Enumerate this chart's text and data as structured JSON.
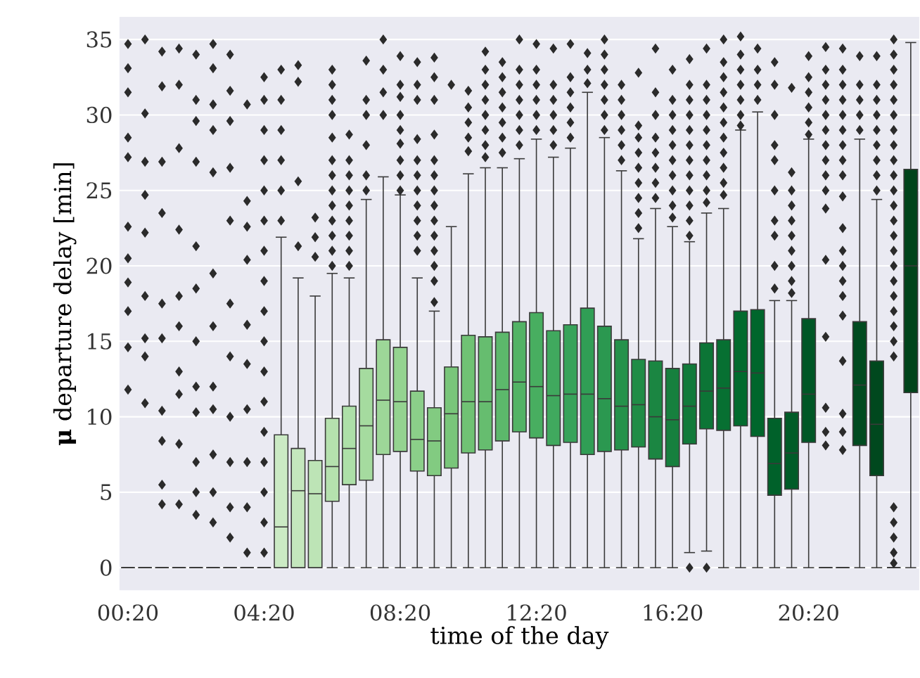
{
  "chart_data": {
    "type": "box",
    "xlabel": "time of the day",
    "ylabel": "**μ** departure delay [min]",
    "categories": [
      "00:20",
      null,
      null,
      null,
      null,
      null,
      null,
      null,
      "04:20",
      null,
      null,
      null,
      null,
      null,
      null,
      null,
      "08:20",
      null,
      null,
      null,
      null,
      null,
      null,
      null,
      "12:20",
      null,
      null,
      null,
      null,
      null,
      null,
      null,
      "16:20",
      null,
      null,
      null,
      null,
      null,
      null,
      null,
      "20:20",
      null,
      null,
      null,
      null,
      null,
      null
    ],
    "ylim": [
      -1.5,
      36.5
    ],
    "yticks": [
      0,
      5,
      10,
      15,
      20,
      25,
      30,
      35
    ],
    "grid": "y",
    "marker": "diamond",
    "colors": [
      "#3a3a3a",
      "#3a3a3a",
      "#3a3a3a",
      "#3a3a3a",
      "#3a3a3a",
      "#3a3a3a",
      "#3a3a3a",
      "#3a3a3a",
      "#3a3a3a",
      "#cbeac4",
      "#c4e7bd",
      "#bde4b6",
      "#b5e1ae",
      "#ade0a8",
      "#a5db9f",
      "#9dd798",
      "#94d390",
      "#8bcf89",
      "#82cb81",
      "#79c67a",
      "#70c274",
      "#66bd6f",
      "#5cb86b",
      "#52b365",
      "#48ae60",
      "#40a95e",
      "#38a35a",
      "#309e55",
      "#2b9850",
      "#25924b",
      "#208c46",
      "#1b8642",
      "#16803e",
      "#117a3a",
      "#0c7536",
      "#077032",
      "#026b2e",
      "#00662c",
      "#00612a",
      "#005c28",
      "#005726",
      "#3a3a3a",
      "#3a3a3a",
      "#004b20",
      "#00481e",
      "#3a3a3a",
      "#00441b"
    ],
    "boxes": [
      {
        "low": 0,
        "q1": 0,
        "median": 0,
        "q3": 0,
        "high": 0,
        "outliers": [
          11.8,
          14.6,
          17,
          18.9,
          20.5,
          22.6,
          27.2,
          28.5,
          31.5,
          33.1,
          34.7
        ]
      },
      {
        "low": 0,
        "q1": 0,
        "median": 0,
        "q3": 0,
        "high": 0,
        "outliers": [
          10.9,
          14,
          15.2,
          18,
          22.2,
          24.7,
          26.9,
          30.1,
          35
        ]
      },
      {
        "low": 0,
        "q1": 0,
        "median": 0,
        "q3": 0,
        "high": 0,
        "outliers": [
          4.2,
          5.5,
          8.4,
          10.4,
          15.2,
          17.5,
          23.5,
          26.9,
          31.9,
          34.2
        ]
      },
      {
        "low": 0,
        "q1": 0,
        "median": 0,
        "q3": 0,
        "high": 0,
        "outliers": [
          4.2,
          8.2,
          11.5,
          13,
          16,
          18,
          22.4,
          27.8,
          32,
          34.4
        ]
      },
      {
        "low": 0,
        "q1": 0,
        "median": 0,
        "q3": 0,
        "high": 0,
        "outliers": [
          3.5,
          5,
          7,
          10.3,
          12,
          15,
          18.5,
          21.3,
          26.9,
          29.6,
          31,
          34
        ]
      },
      {
        "low": 0,
        "q1": 0,
        "median": 0,
        "q3": 0,
        "high": 0,
        "outliers": [
          3,
          5,
          7.5,
          10.5,
          12,
          16,
          19.5,
          26.2,
          29,
          30.7,
          33.1,
          34.7
        ]
      },
      {
        "low": 0,
        "q1": 0,
        "median": 0,
        "q3": 0,
        "high": 0,
        "outliers": [
          2,
          4,
          7,
          10,
          14,
          17.5,
          23,
          26.5,
          29.6,
          31.6,
          34
        ]
      },
      {
        "low": 0,
        "q1": 0,
        "median": 0,
        "q3": 0,
        "high": 0,
        "outliers": [
          1,
          4,
          7,
          10.5,
          13.5,
          16.1,
          20.4,
          22.6,
          24.3,
          30.7
        ]
      },
      {
        "low": 0,
        "q1": 0,
        "median": 0,
        "q3": 0,
        "high": 0,
        "outliers": [
          1,
          3,
          5,
          7,
          9,
          11,
          13,
          15,
          17,
          19,
          21,
          23,
          25,
          27,
          29,
          31,
          32.5
        ]
      },
      {
        "low": 0,
        "q1": 0,
        "median": 2.7,
        "q3": 8.8,
        "high": 21.9,
        "outliers": [
          23,
          25,
          27,
          29,
          31,
          33
        ]
      },
      {
        "low": 0,
        "q1": 0,
        "median": 5.1,
        "q3": 7.9,
        "high": 19.2,
        "outliers": [
          21.3,
          25.6,
          32.2,
          33.3
        ]
      },
      {
        "low": 0,
        "q1": 0,
        "median": 4.9,
        "q3": 7.1,
        "high": 18,
        "outliers": [
          20.6,
          21.9,
          23.2
        ]
      },
      {
        "low": 0,
        "q1": 4.4,
        "median": 6.7,
        "q3": 9.9,
        "high": 19.5,
        "outliers": [
          20,
          21,
          22,
          23,
          24,
          25,
          26,
          27,
          28.5,
          30,
          31,
          32,
          33
        ]
      },
      {
        "low": 0,
        "q1": 5.5,
        "median": 7.9,
        "q3": 10.7,
        "high": 19.2,
        "outliers": [
          20,
          21,
          22,
          23,
          24,
          25,
          26,
          27,
          28.7
        ]
      },
      {
        "low": 0,
        "q1": 5.8,
        "median": 9.4,
        "q3": 13.2,
        "high": 24.4,
        "outliers": [
          25,
          26,
          28,
          30,
          31,
          33.6
        ]
      },
      {
        "low": 0,
        "q1": 7.5,
        "median": 11.1,
        "q3": 15.1,
        "high": 25.9,
        "outliers": [
          30,
          31.5,
          33,
          35
        ]
      },
      {
        "low": 0,
        "q1": 7.7,
        "median": 11,
        "q3": 14.6,
        "high": 24.7,
        "outliers": [
          25,
          26,
          27,
          28.1,
          29,
          30,
          31.2,
          32,
          33.9
        ]
      },
      {
        "low": 0,
        "q1": 6.4,
        "median": 8.5,
        "q3": 11.7,
        "high": 19.2,
        "outliers": [
          21,
          22,
          23,
          24,
          25,
          26,
          27,
          28.4,
          31,
          32,
          33.5
        ]
      },
      {
        "low": 0,
        "q1": 6.1,
        "median": 8.4,
        "q3": 10.6,
        "high": 17,
        "outliers": [
          17.6,
          19,
          20,
          21,
          22,
          23,
          24,
          25,
          26,
          27,
          28.7,
          31,
          32.5,
          33.8
        ]
      },
      {
        "low": 0,
        "q1": 6.6,
        "median": 10.2,
        "q3": 13.3,
        "high": 22.6,
        "outliers": [
          32
        ]
      },
      {
        "low": 0,
        "q1": 7.6,
        "median": 11,
        "q3": 15.4,
        "high": 26.1,
        "outliers": [
          27.6,
          28.5,
          29.5,
          30.5,
          31.6
        ]
      },
      {
        "low": 0,
        "q1": 7.8,
        "median": 11,
        "q3": 15.3,
        "high": 26.5,
        "outliers": [
          27.2,
          28,
          29,
          30,
          31,
          32,
          33,
          34.2
        ]
      },
      {
        "low": 0,
        "q1": 8.4,
        "median": 11.8,
        "q3": 15.6,
        "high": 26.5,
        "outliers": [
          27.5,
          28.5,
          29.5,
          30.5,
          31.5,
          32.5,
          33.5
        ]
      },
      {
        "low": 0,
        "q1": 9,
        "median": 12.3,
        "q3": 16.3,
        "high": 27.1,
        "outliers": [
          28,
          29,
          30,
          31,
          32,
          33,
          35
        ]
      },
      {
        "low": 0,
        "q1": 8.6,
        "median": 12,
        "q3": 16.9,
        "high": 28.4,
        "outliers": [
          29,
          30,
          31,
          32,
          33,
          34.7
        ]
      },
      {
        "low": 0,
        "q1": 8.1,
        "median": 11.4,
        "q3": 15.7,
        "high": 27.2,
        "outliers": [
          28,
          29,
          30,
          31,
          32,
          34.4
        ]
      },
      {
        "low": 0,
        "q1": 8.3,
        "median": 11.5,
        "q3": 16.1,
        "high": 27.8,
        "outliers": [
          28.5,
          29.5,
          30.5,
          31.5,
          32.5,
          34.7
        ]
      },
      {
        "low": 0,
        "q1": 7.5,
        "median": 11.5,
        "q3": 17.2,
        "high": 31.5,
        "outliers": [
          32.1,
          33,
          34.1
        ]
      },
      {
        "low": 0,
        "q1": 7.7,
        "median": 11.2,
        "q3": 16,
        "high": 28.5,
        "outliers": [
          29,
          30,
          31,
          32,
          33,
          34,
          35
        ]
      },
      {
        "low": 0,
        "q1": 7.8,
        "median": 10.7,
        "q3": 15.1,
        "high": 26.3,
        "outliers": [
          27,
          28,
          29,
          30,
          31,
          32
        ]
      },
      {
        "low": 0,
        "q1": 8,
        "median": 10.8,
        "q3": 13.8,
        "high": 21.8,
        "outliers": [
          22.5,
          23.5,
          24.5,
          25.5,
          26.5,
          27.5,
          28.5,
          29.3,
          32.8
        ]
      },
      {
        "low": 0,
        "q1": 7.2,
        "median": 10,
        "q3": 13.7,
        "high": 23.8,
        "outliers": [
          24.5,
          25.5,
          26.5,
          27.5,
          28.5,
          30,
          31.5,
          34.4
        ]
      },
      {
        "low": 0,
        "q1": 6.7,
        "median": 9.8,
        "q3": 13.2,
        "high": 22.6,
        "outliers": [
          23.2,
          24,
          25,
          26,
          27,
          28,
          29,
          30,
          31,
          33
        ]
      },
      {
        "low": 1,
        "q1": 8.2,
        "median": 10.7,
        "q3": 13.5,
        "high": 21.6,
        "outliers": [
          0,
          22,
          23,
          24,
          25,
          26,
          27,
          28,
          29,
          30,
          31,
          32,
          33.7
        ]
      },
      {
        "low": 1.1,
        "q1": 9.2,
        "median": 11.7,
        "q3": 14.9,
        "high": 23.5,
        "outliers": [
          0,
          24.2,
          25,
          26,
          27,
          28,
          29,
          30,
          31,
          32,
          34.4
        ]
      },
      {
        "low": 0,
        "q1": 9.1,
        "median": 11.9,
        "q3": 15.1,
        "high": 23.8,
        "outliers": [
          24.7,
          25.5,
          26.5,
          27.5,
          28.5,
          29.5,
          30.5,
          31.5,
          32.5,
          33.5,
          35
        ]
      },
      {
        "low": 0,
        "q1": 9.4,
        "median": 13,
        "q3": 17,
        "high": 29,
        "outliers": [
          29.3,
          30,
          31,
          32,
          33,
          34,
          35.2
        ]
      },
      {
        "low": 0,
        "q1": 8.7,
        "median": 12.9,
        "q3": 17.1,
        "high": 30.2,
        "outliers": [
          31,
          32,
          33,
          34.4
        ]
      },
      {
        "low": 0,
        "q1": 4.8,
        "median": 6.9,
        "q3": 9.9,
        "high": 17.7,
        "outliers": [
          18.5,
          20,
          22,
          23,
          25,
          27,
          28,
          30,
          32,
          33.5
        ]
      },
      {
        "low": 0,
        "q1": 5.2,
        "median": 7.6,
        "q3": 10.3,
        "high": 17.7,
        "outliers": [
          18.2,
          19,
          20,
          21,
          22,
          23,
          24,
          25,
          26.2,
          31.8
        ]
      },
      {
        "low": 0,
        "q1": 8.3,
        "median": 11.5,
        "q3": 16.5,
        "high": 28.4,
        "outliers": [
          28.7,
          29.5,
          30.5,
          31.5,
          32.5,
          33.9
        ]
      },
      {
        "low": 0,
        "q1": 0,
        "median": 0,
        "q3": 0,
        "high": 0,
        "outliers": [
          8.1,
          9,
          10.6,
          15.3,
          20.4,
          23.8,
          25,
          26,
          27,
          28,
          29,
          30,
          31,
          32,
          33,
          34.5
        ]
      },
      {
        "low": 0,
        "q1": 0,
        "median": 0,
        "q3": 0,
        "high": 0,
        "outliers": [
          7.8,
          9,
          10.2,
          13.7,
          16.7,
          18,
          19,
          20,
          21,
          22.5,
          24.6,
          26,
          27,
          28,
          29,
          30,
          31,
          32,
          33,
          34.4
        ]
      },
      {
        "low": 0,
        "q1": 8.1,
        "median": 12.1,
        "q3": 16.3,
        "high": 28.4,
        "outliers": [
          29,
          30,
          31,
          32,
          33.9
        ]
      },
      {
        "low": 0,
        "q1": 6.1,
        "median": 9.5,
        "q3": 13.7,
        "high": 24.4,
        "outliers": [
          25,
          26,
          27,
          28,
          29,
          30,
          31,
          32,
          33.9
        ]
      },
      {
        "low": 0,
        "q1": 0,
        "median": 0,
        "q3": 0,
        "high": 0,
        "outliers": [
          0.3,
          1,
          2,
          3,
          4,
          14,
          15,
          16,
          17,
          18,
          19,
          20,
          21,
          22,
          23,
          24,
          25,
          26,
          27,
          28,
          29,
          30,
          31,
          32,
          33,
          34,
          35
        ]
      },
      {
        "low": 0,
        "q1": 11.6,
        "median": 20,
        "q3": 26.4,
        "high": 34.8
      }
    ]
  }
}
